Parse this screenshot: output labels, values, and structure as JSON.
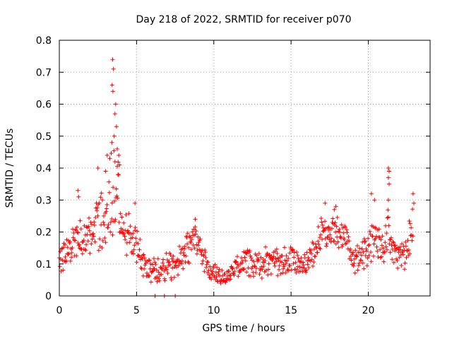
{
  "chart_data": {
    "type": "scatter",
    "title": "Day 218 of 2022, SRMTID for receiver p070",
    "xlabel": "GPS time / hours",
    "ylabel": "SRMTID / TECUs",
    "xlim": [
      0,
      24
    ],
    "ylim": [
      0,
      0.8
    ],
    "xticks": [
      0,
      5,
      10,
      15,
      20
    ],
    "yticks": [
      0,
      0.1,
      0.2,
      0.3,
      0.4,
      0.5,
      0.6,
      0.7,
      0.8
    ],
    "xtick_labels": [
      "0",
      "5",
      "10",
      "15",
      "20"
    ],
    "ytick_labels": [
      "0",
      "0.1",
      "0.2",
      "0.3",
      "0.4",
      "0.5",
      "0.6",
      "0.7",
      "0.8"
    ],
    "grid": true,
    "marker": "+",
    "marker_color": "#ff0000",
    "envelope": [
      [
        0.0,
        0.11,
        0.04
      ],
      [
        0.4,
        0.14,
        0.04
      ],
      [
        0.8,
        0.16,
        0.05
      ],
      [
        1.2,
        0.2,
        0.06
      ],
      [
        1.6,
        0.17,
        0.05
      ],
      [
        2.0,
        0.18,
        0.06
      ],
      [
        2.4,
        0.21,
        0.07
      ],
      [
        2.8,
        0.24,
        0.08
      ],
      [
        3.2,
        0.28,
        0.1
      ],
      [
        3.5,
        0.34,
        0.14
      ],
      [
        3.8,
        0.3,
        0.12
      ],
      [
        4.1,
        0.2,
        0.07
      ],
      [
        4.6,
        0.2,
        0.06
      ],
      [
        5.0,
        0.16,
        0.05
      ],
      [
        5.5,
        0.1,
        0.04
      ],
      [
        6.0,
        0.09,
        0.04
      ],
      [
        6.5,
        0.08,
        0.04
      ],
      [
        7.0,
        0.1,
        0.04
      ],
      [
        7.5,
        0.09,
        0.04
      ],
      [
        8.0,
        0.12,
        0.04
      ],
      [
        8.5,
        0.17,
        0.05
      ],
      [
        8.8,
        0.2,
        0.04
      ],
      [
        9.2,
        0.13,
        0.04
      ],
      [
        9.8,
        0.08,
        0.03
      ],
      [
        10.5,
        0.06,
        0.02
      ],
      [
        11.0,
        0.06,
        0.02
      ],
      [
        11.5,
        0.09,
        0.03
      ],
      [
        12.0,
        0.11,
        0.04
      ],
      [
        12.5,
        0.1,
        0.04
      ],
      [
        13.0,
        0.1,
        0.04
      ],
      [
        14.0,
        0.11,
        0.04
      ],
      [
        15.0,
        0.11,
        0.04
      ],
      [
        16.0,
        0.1,
        0.04
      ],
      [
        16.5,
        0.13,
        0.04
      ],
      [
        17.0,
        0.22,
        0.05
      ],
      [
        17.5,
        0.2,
        0.04
      ],
      [
        18.0,
        0.2,
        0.04
      ],
      [
        18.5,
        0.18,
        0.04
      ],
      [
        19.0,
        0.12,
        0.04
      ],
      [
        19.5,
        0.12,
        0.04
      ],
      [
        20.0,
        0.15,
        0.05
      ],
      [
        20.5,
        0.18,
        0.05
      ],
      [
        21.0,
        0.14,
        0.05
      ],
      [
        21.3,
        0.2,
        0.08
      ],
      [
        21.6,
        0.13,
        0.04
      ],
      [
        22.0,
        0.12,
        0.04
      ],
      [
        22.5,
        0.15,
        0.05
      ],
      [
        22.9,
        0.22,
        0.07
      ]
    ],
    "spikes": [
      [
        3.45,
        0.74
      ],
      [
        3.5,
        0.71
      ],
      [
        3.42,
        0.66
      ],
      [
        3.47,
        0.64
      ],
      [
        3.65,
        0.6
      ],
      [
        3.6,
        0.57
      ],
      [
        3.7,
        0.53
      ],
      [
        3.55,
        0.5
      ],
      [
        3.4,
        0.48
      ],
      [
        3.75,
        0.46
      ],
      [
        3.85,
        0.44
      ],
      [
        3.1,
        0.44
      ],
      [
        3.6,
        0.42
      ],
      [
        3.9,
        0.41
      ],
      [
        2.5,
        0.4
      ],
      [
        3.0,
        0.39
      ],
      [
        3.8,
        0.38
      ],
      [
        21.3,
        0.4
      ],
      [
        21.35,
        0.39
      ],
      [
        21.3,
        0.37
      ],
      [
        21.35,
        0.35
      ],
      [
        21.3,
        0.3
      ],
      [
        1.2,
        0.33
      ],
      [
        1.25,
        0.31
      ],
      [
        17.2,
        0.29
      ],
      [
        22.9,
        0.32
      ],
      [
        22.95,
        0.29
      ],
      [
        20.2,
        0.32
      ],
      [
        20.4,
        0.3
      ],
      [
        4.9,
        0.29
      ],
      [
        8.8,
        0.24
      ],
      [
        17.9,
        0.28
      ],
      [
        17.8,
        0.27
      ],
      [
        6.8,
        0.0
      ],
      [
        6.2,
        0.0
      ],
      [
        7.5,
        0.0
      ]
    ]
  }
}
